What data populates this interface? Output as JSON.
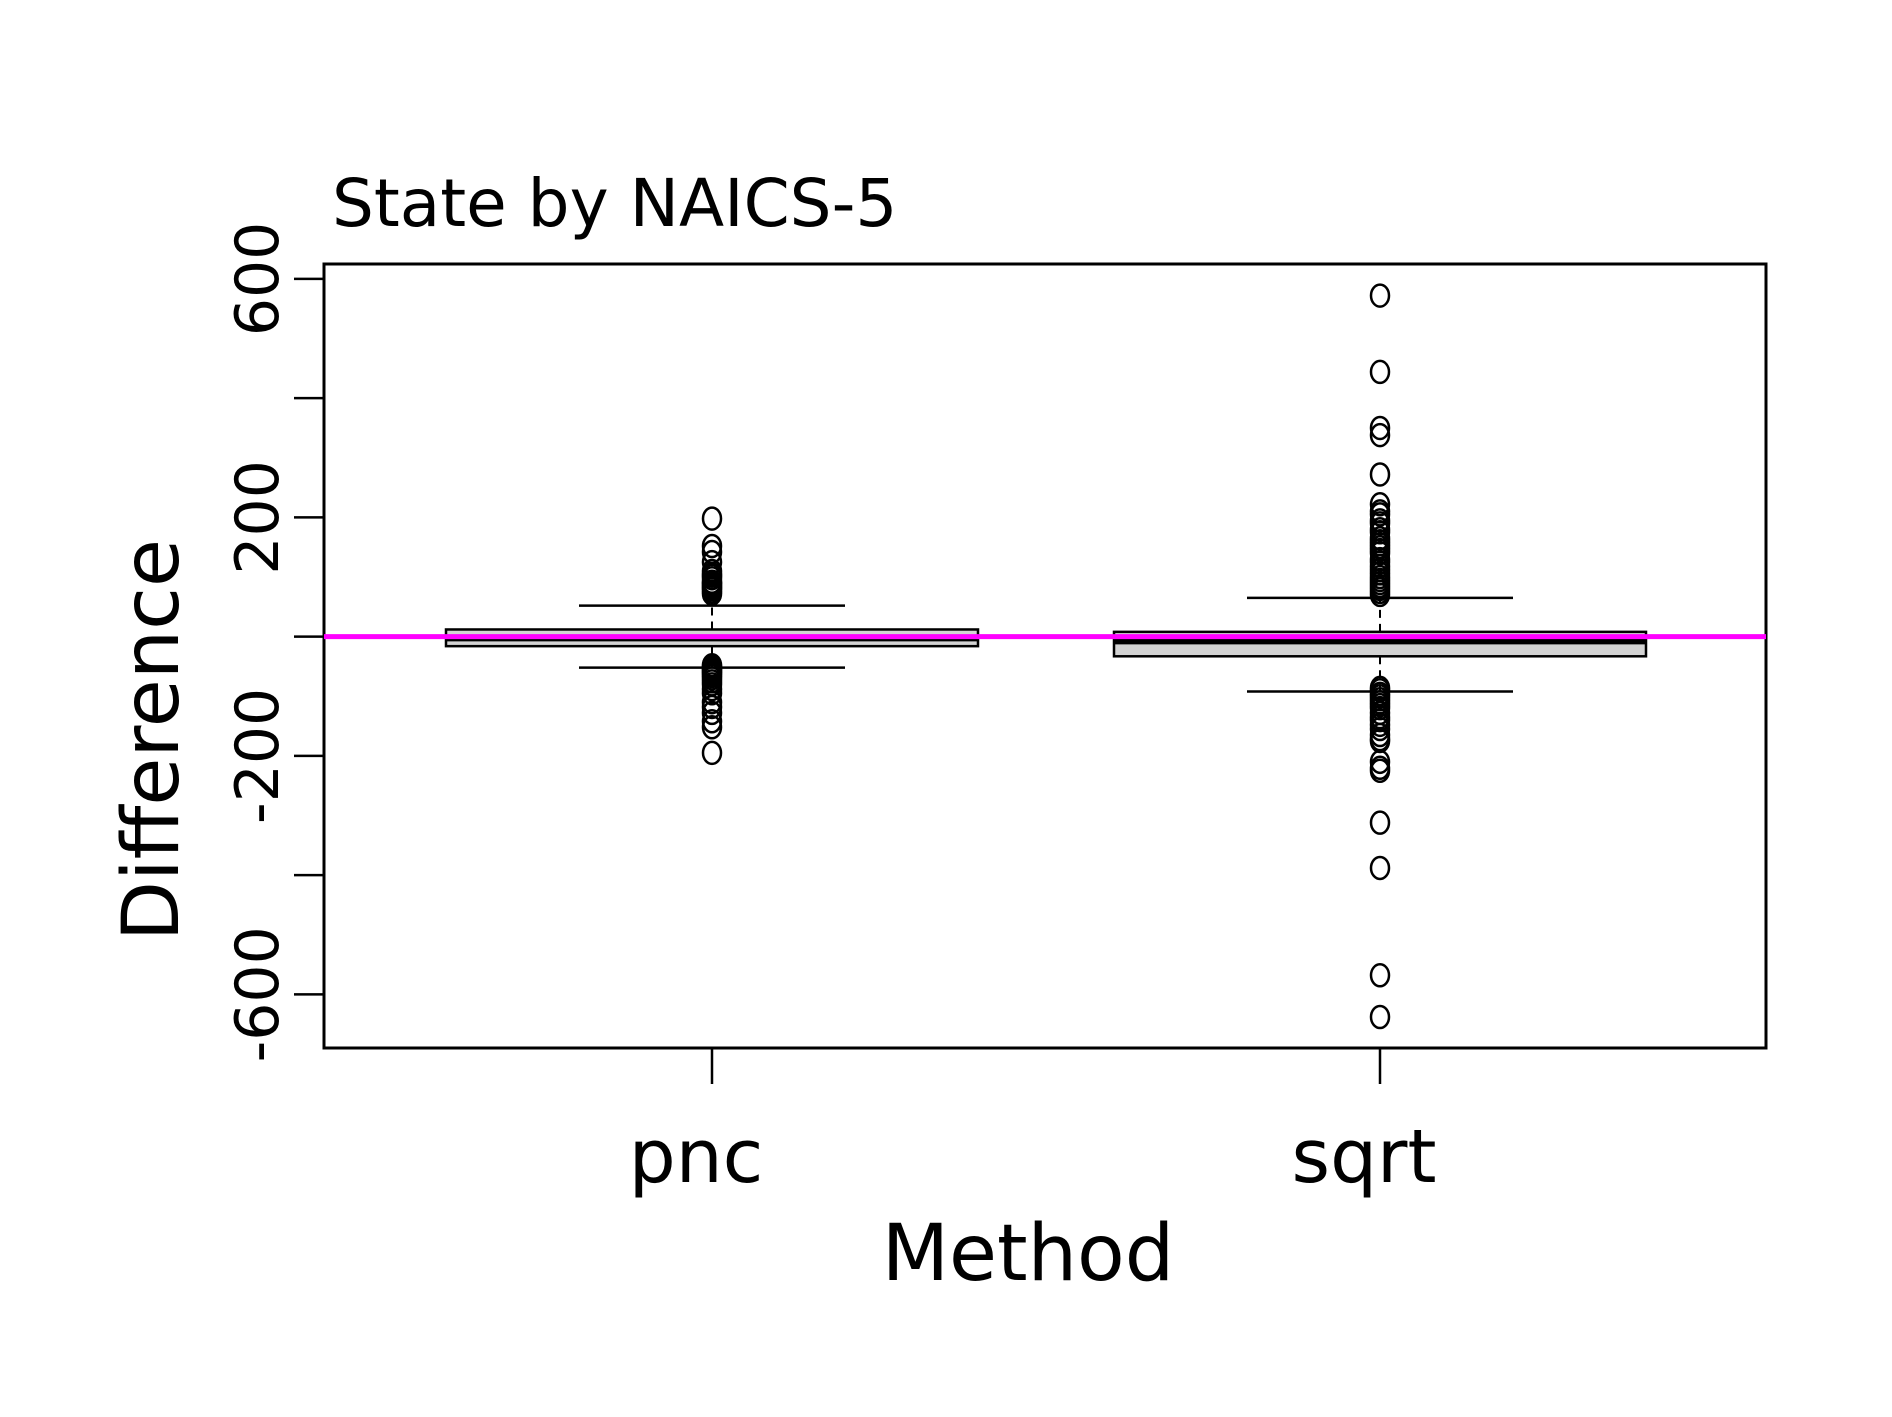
{
  "chart_data": {
    "type": "boxplot",
    "title": "State by NAICS-5",
    "xlabel": "Method",
    "ylabel": "Difference",
    "categories": [
      "pnc",
      "sqrt"
    ],
    "y_ticks": [
      -600,
      -400,
      -200,
      0,
      200,
      400,
      600
    ],
    "y_tick_labels": [
      {
        "value": -600,
        "label": "-600"
      },
      {
        "value": -200,
        "label": "-200"
      },
      {
        "value": 200,
        "label": "200"
      },
      {
        "value": 600,
        "label": "600"
      }
    ],
    "ylim": [
      -690,
      625
    ],
    "reference_line": {
      "y": 0,
      "color": "#ff00ff"
    },
    "box_fill": "#d3d3d3",
    "boxes": [
      {
        "category": "pnc",
        "whisker_low": -52,
        "q1": -16,
        "median": -3,
        "q3": 12,
        "whisker_high": 52,
        "outliers": [
          198,
          152,
          142,
          125,
          110,
          105,
          102,
          98,
          92,
          90,
          88,
          85,
          82,
          80,
          76,
          72,
          -48,
          -50,
          -53,
          -55,
          -58,
          -60,
          -63,
          -66,
          -70,
          -75,
          -80,
          -88,
          -95,
          -110,
          -118,
          -128,
          -142,
          -152,
          -195
        ]
      },
      {
        "category": "sqrt",
        "whisker_low": -92,
        "q1": -33,
        "median": -8,
        "q3": 8,
        "whisker_high": 65,
        "outliers": [
          572,
          444,
          350,
          338,
          272,
          222,
          210,
          205,
          195,
          190,
          180,
          175,
          165,
          160,
          155,
          150,
          145,
          140,
          130,
          125,
          118,
          112,
          106,
          100,
          95,
          90,
          85,
          80,
          75,
          70,
          -86,
          -90,
          -96,
          -100,
          -105,
          -110,
          -115,
          -120,
          -128,
          -135,
          -140,
          -148,
          -155,
          -165,
          -172,
          -175,
          -210,
          -220,
          -225,
          -312,
          -388,
          -568,
          -638
        ]
      }
    ]
  }
}
